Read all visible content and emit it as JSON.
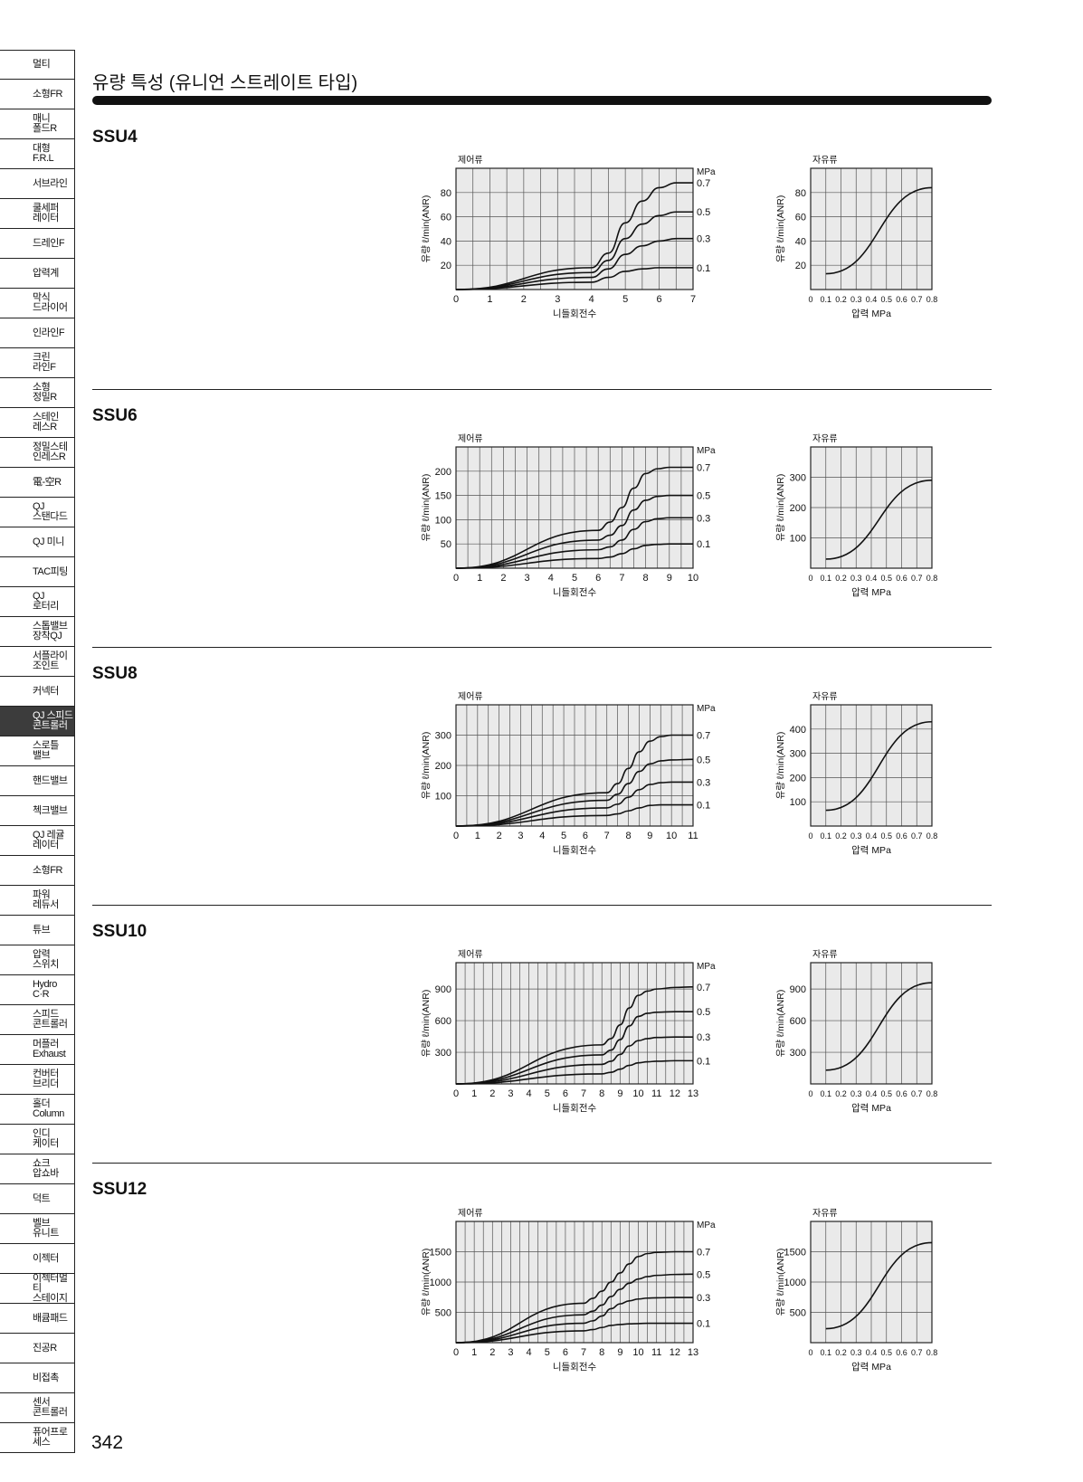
{
  "sidebar": {
    "items": [
      {
        "label": "멀티",
        "active": false
      },
      {
        "label": "소형FR",
        "active": false
      },
      {
        "label": "매니\n폴드R",
        "active": false
      },
      {
        "label": "대형\nF.R.L",
        "active": false
      },
      {
        "label": "서브라인",
        "active": false
      },
      {
        "label": "쿨세퍼\n레이터",
        "active": false
      },
      {
        "label": "드레인F",
        "active": false
      },
      {
        "label": "압력계",
        "active": false
      },
      {
        "label": "막식\n드라이어",
        "active": false
      },
      {
        "label": "인라인F",
        "active": false
      },
      {
        "label": "크린\n라인F",
        "active": false
      },
      {
        "label": "소형\n정밀R",
        "active": false
      },
      {
        "label": "스테인\n레스R",
        "active": false
      },
      {
        "label": "정밀스테\n인레스R",
        "active": false
      },
      {
        "label": "電-空R",
        "active": false
      },
      {
        "label": "QJ\n스탠다드",
        "active": false
      },
      {
        "label": "QJ 미니",
        "active": false
      },
      {
        "label": "TAC피팅",
        "active": false
      },
      {
        "label": "QJ\n로터리",
        "active": false
      },
      {
        "label": "스톱밸브\n장착QJ",
        "active": false
      },
      {
        "label": "서플라이\n조인트",
        "active": false
      },
      {
        "label": "커넥터",
        "active": false
      },
      {
        "label": "QJ 스피드\n콘트롤러",
        "active": true
      },
      {
        "label": "스로틀\n밸브",
        "active": false
      },
      {
        "label": "핸드밸브",
        "active": false
      },
      {
        "label": "첵크밸브",
        "active": false
      },
      {
        "label": "QJ 레귤\n레이터",
        "active": false
      },
      {
        "label": "소형FR",
        "active": false
      },
      {
        "label": "파워\n레듀서",
        "active": false
      },
      {
        "label": "튜브",
        "active": false
      },
      {
        "label": "압력\n스위치",
        "active": false
      },
      {
        "label": "Hydro\nC·R",
        "active": false
      },
      {
        "label": "스피드\n콘트롤러",
        "active": false
      },
      {
        "label": "머플러\nExhaust",
        "active": false
      },
      {
        "label": "컨버터\n브리더",
        "active": false
      },
      {
        "label": "홀더\nColumn",
        "active": false
      },
      {
        "label": "인디\n케이터",
        "active": false
      },
      {
        "label": "쇼크\n압쇼바",
        "active": false
      },
      {
        "label": "덕트",
        "active": false
      },
      {
        "label": "벨브\n유니트",
        "active": false
      },
      {
        "label": "이젝터",
        "active": false
      },
      {
        "label": "이젝터멀티\n스테이지",
        "active": false
      },
      {
        "label": "배큠패드",
        "active": false
      },
      {
        "label": "진공R",
        "active": false
      },
      {
        "label": "비접촉",
        "active": false
      },
      {
        "label": "센서\n콘트롤러",
        "active": false
      },
      {
        "label": "퓨어프로\n세스",
        "active": false
      }
    ]
  },
  "page": {
    "title": "유량 특성 (유니언 스트레이트 타입)",
    "page_number": "342",
    "controlled_flow_label": "제어류",
    "free_flow_label": "자유류",
    "unit_mpa": "MPa",
    "y_axis_label": "유량  ℓ/min(ANR)",
    "x_label_needle": "니들회전수",
    "x_label_pressure": "압력 MPa"
  },
  "chart_data": [
    {
      "model": "SSU4",
      "type": "line",
      "panel": "controlled",
      "x_ticks": [
        0,
        1,
        2,
        3,
        4,
        5,
        6,
        7
      ],
      "xlim": [
        0,
        7
      ],
      "y_ticks": [
        20,
        40,
        60,
        80
      ],
      "ylim": [
        0,
        100
      ],
      "series": [
        {
          "name": "0.7",
          "x": [
            0,
            4,
            4.5,
            5,
            5.5,
            6,
            6.5,
            7
          ],
          "y": [
            0,
            18,
            30,
            55,
            73,
            84,
            88,
            88
          ]
        },
        {
          "name": "0.5",
          "x": [
            0,
            4,
            4.5,
            5,
            5.5,
            6,
            6.5,
            7
          ],
          "y": [
            0,
            14,
            24,
            42,
            54,
            61,
            64,
            64
          ]
        },
        {
          "name": "0.3",
          "x": [
            0,
            4,
            4.5,
            5,
            5.5,
            6,
            6.5,
            7
          ],
          "y": [
            0,
            10,
            17,
            29,
            36,
            40,
            42,
            42
          ]
        },
        {
          "name": "0.1",
          "x": [
            0,
            4,
            4.5,
            5,
            5.5,
            6,
            6.5,
            7
          ],
          "y": [
            0,
            6,
            10,
            15,
            17,
            18,
            18,
            18
          ]
        }
      ]
    },
    {
      "model": "SSU4",
      "type": "line",
      "panel": "free",
      "x_ticks": [
        0,
        0.1,
        0.2,
        0.3,
        0.4,
        0.5,
        0.6,
        0.7,
        0.8
      ],
      "xlim": [
        0,
        0.8
      ],
      "y_ticks": [
        20,
        40,
        60,
        80
      ],
      "ylim": [
        0,
        100
      ],
      "series": [
        {
          "x": [
            0.1,
            0.8
          ],
          "y": [
            13,
            84
          ]
        }
      ]
    },
    {
      "model": "SSU6",
      "type": "line",
      "panel": "controlled",
      "x_ticks": [
        0,
        1,
        2,
        3,
        4,
        5,
        6,
        7,
        8,
        9,
        10
      ],
      "xlim": [
        0,
        10
      ],
      "y_ticks": [
        50,
        100,
        150,
        200
      ],
      "ylim": [
        0,
        250
      ],
      "series": [
        {
          "name": "0.7",
          "x": [
            0,
            6,
            6.5,
            7,
            7.5,
            8,
            8.5,
            9,
            10
          ],
          "y": [
            0,
            78,
            95,
            125,
            165,
            195,
            205,
            208,
            208
          ]
        },
        {
          "name": "0.5",
          "x": [
            0,
            6,
            6.5,
            7,
            7.5,
            8,
            8.5,
            9,
            10
          ],
          "y": [
            0,
            58,
            68,
            88,
            120,
            140,
            148,
            150,
            150
          ]
        },
        {
          "name": "0.3",
          "x": [
            0,
            6,
            6.5,
            7,
            7.5,
            8,
            8.5,
            9,
            10
          ],
          "y": [
            0,
            38,
            44,
            58,
            80,
            96,
            102,
            104,
            104
          ]
        },
        {
          "name": "0.1",
          "x": [
            0,
            6,
            6.5,
            7,
            7.5,
            8,
            8.5,
            9,
            10
          ],
          "y": [
            0,
            20,
            23,
            30,
            40,
            47,
            49,
            50,
            50
          ]
        }
      ]
    },
    {
      "model": "SSU6",
      "type": "line",
      "panel": "free",
      "x_ticks": [
        0,
        0.1,
        0.2,
        0.3,
        0.4,
        0.5,
        0.6,
        0.7,
        0.8
      ],
      "xlim": [
        0,
        0.8
      ],
      "y_ticks": [
        100,
        200,
        300
      ],
      "ylim": [
        0,
        400
      ],
      "series": [
        {
          "x": [
            0.1,
            0.8
          ],
          "y": [
            30,
            290
          ]
        }
      ]
    },
    {
      "model": "SSU8",
      "type": "line",
      "panel": "controlled",
      "x_ticks": [
        0,
        1,
        2,
        3,
        4,
        5,
        6,
        7,
        8,
        9,
        10,
        11
      ],
      "xlim": [
        0,
        11
      ],
      "y_ticks": [
        100,
        200,
        300
      ],
      "ylim": [
        0,
        400
      ],
      "series": [
        {
          "name": "0.7",
          "x": [
            0,
            7,
            7.5,
            8,
            8.5,
            9,
            9.5,
            10,
            11
          ],
          "y": [
            0,
            110,
            140,
            190,
            245,
            280,
            295,
            300,
            300
          ]
        },
        {
          "name": "0.5",
          "x": [
            0,
            7,
            7.5,
            8,
            8.5,
            9,
            9.5,
            10,
            11
          ],
          "y": [
            0,
            85,
            105,
            140,
            180,
            205,
            215,
            218,
            220
          ]
        },
        {
          "name": "0.3",
          "x": [
            0,
            7,
            7.5,
            8,
            8.5,
            9,
            9.5,
            10,
            11
          ],
          "y": [
            0,
            60,
            72,
            95,
            120,
            137,
            143,
            145,
            145
          ]
        },
        {
          "name": "0.1",
          "x": [
            0,
            7,
            7.5,
            8,
            8.5,
            9,
            9.5,
            10,
            11
          ],
          "y": [
            0,
            35,
            40,
            50,
            60,
            68,
            70,
            70,
            70
          ]
        }
      ]
    },
    {
      "model": "SSU8",
      "type": "line",
      "panel": "free",
      "x_ticks": [
        0,
        0.1,
        0.2,
        0.3,
        0.4,
        0.5,
        0.6,
        0.7,
        0.8
      ],
      "xlim": [
        0,
        0.8
      ],
      "y_ticks": [
        100,
        200,
        300,
        400
      ],
      "ylim": [
        0,
        500
      ],
      "series": [
        {
          "x": [
            0.1,
            0.8
          ],
          "y": [
            65,
            430
          ]
        }
      ]
    },
    {
      "model": "SSU10",
      "type": "line",
      "panel": "controlled",
      "x_ticks": [
        0,
        1,
        2,
        3,
        4,
        5,
        6,
        7,
        8,
        9,
        10,
        11,
        12,
        13
      ],
      "xlim": [
        0,
        13
      ],
      "y_ticks": [
        300,
        600,
        900
      ],
      "ylim": [
        0,
        1150
      ],
      "series": [
        {
          "name": "0.7",
          "x": [
            0,
            8,
            8.5,
            9,
            9.5,
            10,
            10.5,
            11,
            12,
            13
          ],
          "y": [
            0,
            370,
            430,
            560,
            720,
            840,
            880,
            900,
            915,
            920
          ]
        },
        {
          "name": "0.5",
          "x": [
            0,
            8,
            8.5,
            9,
            9.5,
            10,
            10.5,
            11,
            12,
            13
          ],
          "y": [
            0,
            275,
            320,
            420,
            550,
            640,
            670,
            680,
            685,
            685
          ]
        },
        {
          "name": "0.3",
          "x": [
            0,
            8,
            8.5,
            9,
            9.5,
            10,
            10.5,
            11,
            12,
            13
          ],
          "y": [
            0,
            185,
            215,
            280,
            360,
            410,
            430,
            440,
            445,
            445
          ]
        },
        {
          "name": "0.1",
          "x": [
            0,
            8,
            8.5,
            9,
            9.5,
            10,
            10.5,
            11,
            12,
            13
          ],
          "y": [
            0,
            95,
            110,
            140,
            175,
            200,
            210,
            215,
            220,
            220
          ]
        }
      ]
    },
    {
      "model": "SSU10",
      "type": "line",
      "panel": "free",
      "x_ticks": [
        0,
        0.1,
        0.2,
        0.3,
        0.4,
        0.5,
        0.6,
        0.7,
        0.8
      ],
      "xlim": [
        0,
        0.8
      ],
      "y_ticks": [
        300,
        600,
        900
      ],
      "ylim": [
        0,
        1150
      ],
      "series": [
        {
          "x": [
            0.1,
            0.8
          ],
          "y": [
            130,
            960
          ]
        }
      ]
    },
    {
      "model": "SSU12",
      "type": "line",
      "panel": "controlled",
      "x_ticks": [
        0,
        1,
        2,
        3,
        4,
        5,
        6,
        7,
        8,
        9,
        10,
        11,
        12,
        13
      ],
      "xlim": [
        0,
        13
      ],
      "y_ticks": [
        500,
        1000,
        1500
      ],
      "ylim": [
        0,
        2000
      ],
      "series": [
        {
          "name": "0.7",
          "x": [
            0,
            7,
            7.5,
            8,
            8.5,
            9,
            9.5,
            10,
            10.5,
            11,
            12,
            13
          ],
          "y": [
            0,
            650,
            730,
            850,
            1000,
            1150,
            1300,
            1420,
            1470,
            1490,
            1500,
            1500
          ]
        },
        {
          "name": "0.5",
          "x": [
            0,
            7,
            7.5,
            8,
            8.5,
            9,
            9.5,
            10,
            10.5,
            11,
            12,
            13
          ],
          "y": [
            0,
            460,
            520,
            620,
            760,
            880,
            980,
            1050,
            1090,
            1110,
            1125,
            1130
          ]
        },
        {
          "name": "0.3",
          "x": [
            0,
            7,
            7.5,
            8,
            8.5,
            9,
            9.5,
            10,
            10.5,
            11,
            12,
            13
          ],
          "y": [
            0,
            320,
            360,
            440,
            560,
            640,
            690,
            720,
            735,
            740,
            745,
            745
          ]
        },
        {
          "name": "0.1",
          "x": [
            0,
            7,
            7.5,
            8,
            8.5,
            9,
            9.5,
            10,
            10.5,
            11,
            12,
            13
          ],
          "y": [
            0,
            195,
            215,
            250,
            285,
            300,
            310,
            315,
            320,
            320,
            320,
            320
          ]
        }
      ]
    },
    {
      "model": "SSU12",
      "type": "line",
      "panel": "free",
      "x_ticks": [
        0,
        0.1,
        0.2,
        0.3,
        0.4,
        0.5,
        0.6,
        0.7,
        0.8
      ],
      "xlim": [
        0,
        0.8
      ],
      "y_ticks": [
        500,
        1000,
        1500
      ],
      "ylim": [
        0,
        2000
      ],
      "series": [
        {
          "x": [
            0.1,
            0.8
          ],
          "y": [
            230,
            1650
          ]
        }
      ]
    }
  ]
}
